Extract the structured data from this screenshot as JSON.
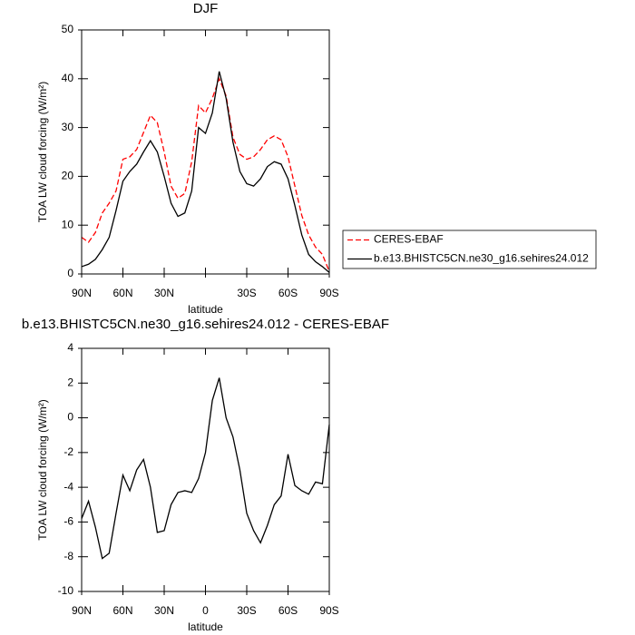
{
  "chart_data": [
    {
      "type": "line",
      "title": "DJF",
      "xlabel": "latitude",
      "ylabel": "TOA LW cloud forcing (W/m²)",
      "x": [
        90,
        85,
        80,
        75,
        70,
        65,
        60,
        55,
        50,
        45,
        40,
        35,
        30,
        25,
        20,
        15,
        10,
        5,
        0,
        -5,
        -10,
        -15,
        -20,
        -25,
        -30,
        -35,
        -40,
        -45,
        -50,
        -55,
        -60,
        -65,
        -70,
        -75,
        -80,
        -85,
        -90
      ],
      "series": [
        {
          "name": "CERES-EBAF",
          "color": "#ff0000",
          "linestyle": "dashed",
          "values": [
            7.5,
            6.5,
            8.5,
            12.5,
            14.5,
            17,
            23.5,
            24,
            25.5,
            29,
            32.5,
            31,
            25,
            18,
            15.5,
            16.5,
            23,
            34.5,
            33,
            36,
            40,
            36.5,
            28,
            24.5,
            23.5,
            24,
            25.5,
            27.5,
            28.3,
            27.5,
            24,
            18,
            12,
            8,
            5.5,
            4,
            0.5
          ]
        },
        {
          "name": "b.e13.BHISTC5CN.ne30_g16.sehires24.012",
          "color": "#000000",
          "linestyle": "solid",
          "values": [
            1.5,
            2,
            3,
            5,
            7.5,
            13,
            19,
            21,
            22.5,
            25,
            27.3,
            25,
            20,
            14.5,
            11.8,
            12.5,
            17,
            30,
            28.8,
            33,
            41.5,
            36,
            27,
            21,
            18.5,
            18,
            19.5,
            22,
            23,
            22.5,
            19.5,
            14,
            8,
            4,
            2.5,
            1.5,
            0.3
          ]
        }
      ],
      "xlim": [
        90,
        -90
      ],
      "xticks": [
        {
          "value": 90,
          "label": "90N"
        },
        {
          "value": 60,
          "label": "60N"
        },
        {
          "value": 30,
          "label": "30N"
        },
        {
          "value": 0,
          "label": null
        },
        {
          "value": -30,
          "label": "30S"
        },
        {
          "value": -60,
          "label": "60S"
        },
        {
          "value": -90,
          "label": "90S"
        }
      ],
      "ylim": [
        0,
        50
      ],
      "yticks": [
        0,
        10,
        20,
        30,
        40,
        50
      ],
      "legend": "right"
    },
    {
      "type": "line",
      "title": "b.e13.BHISTC5CN.ne30_g16.sehires24.012 - CERES-EBAF",
      "xlabel": "latitude",
      "ylabel": "TOA LW cloud forcing (W/m²)",
      "x": [
        90,
        85,
        80,
        75,
        70,
        65,
        60,
        55,
        50,
        45,
        40,
        35,
        30,
        25,
        20,
        15,
        10,
        5,
        0,
        -5,
        -10,
        -15,
        -20,
        -25,
        -30,
        -35,
        -40,
        -45,
        -50,
        -55,
        -60,
        -65,
        -70,
        -75,
        -80,
        -85,
        -90
      ],
      "series": [
        {
          "color": "#000000",
          "linestyle": "solid",
          "values": [
            -5.8,
            -4.8,
            -6.3,
            -8.1,
            -7.8,
            -5.5,
            -3.3,
            -4.2,
            -3.0,
            -2.4,
            -4.0,
            -6.6,
            -6.5,
            -5.0,
            -4.3,
            -4.2,
            -4.3,
            -3.5,
            -2,
            1,
            2.3,
            0,
            -1.1,
            -3,
            -5.5,
            -6.5,
            -7.2,
            -6.2,
            -5,
            -4.5,
            -2.1,
            -3.9,
            -4.2,
            -4.4,
            -3.7,
            -3.8,
            -0.4
          ]
        }
      ],
      "xlim": [
        90,
        -90
      ],
      "xticks": [
        {
          "value": 90,
          "label": "90N"
        },
        {
          "value": 60,
          "label": "60N"
        },
        {
          "value": 30,
          "label": "30N"
        },
        {
          "value": 0,
          "label": "0"
        },
        {
          "value": -30,
          "label": "30S"
        },
        {
          "value": -60,
          "label": "60S"
        },
        {
          "value": -90,
          "label": "90S"
        }
      ],
      "ylim": [
        -10,
        4
      ],
      "yticks": [
        -10,
        -8,
        -6,
        -4,
        -2,
        0,
        2,
        4
      ]
    }
  ]
}
